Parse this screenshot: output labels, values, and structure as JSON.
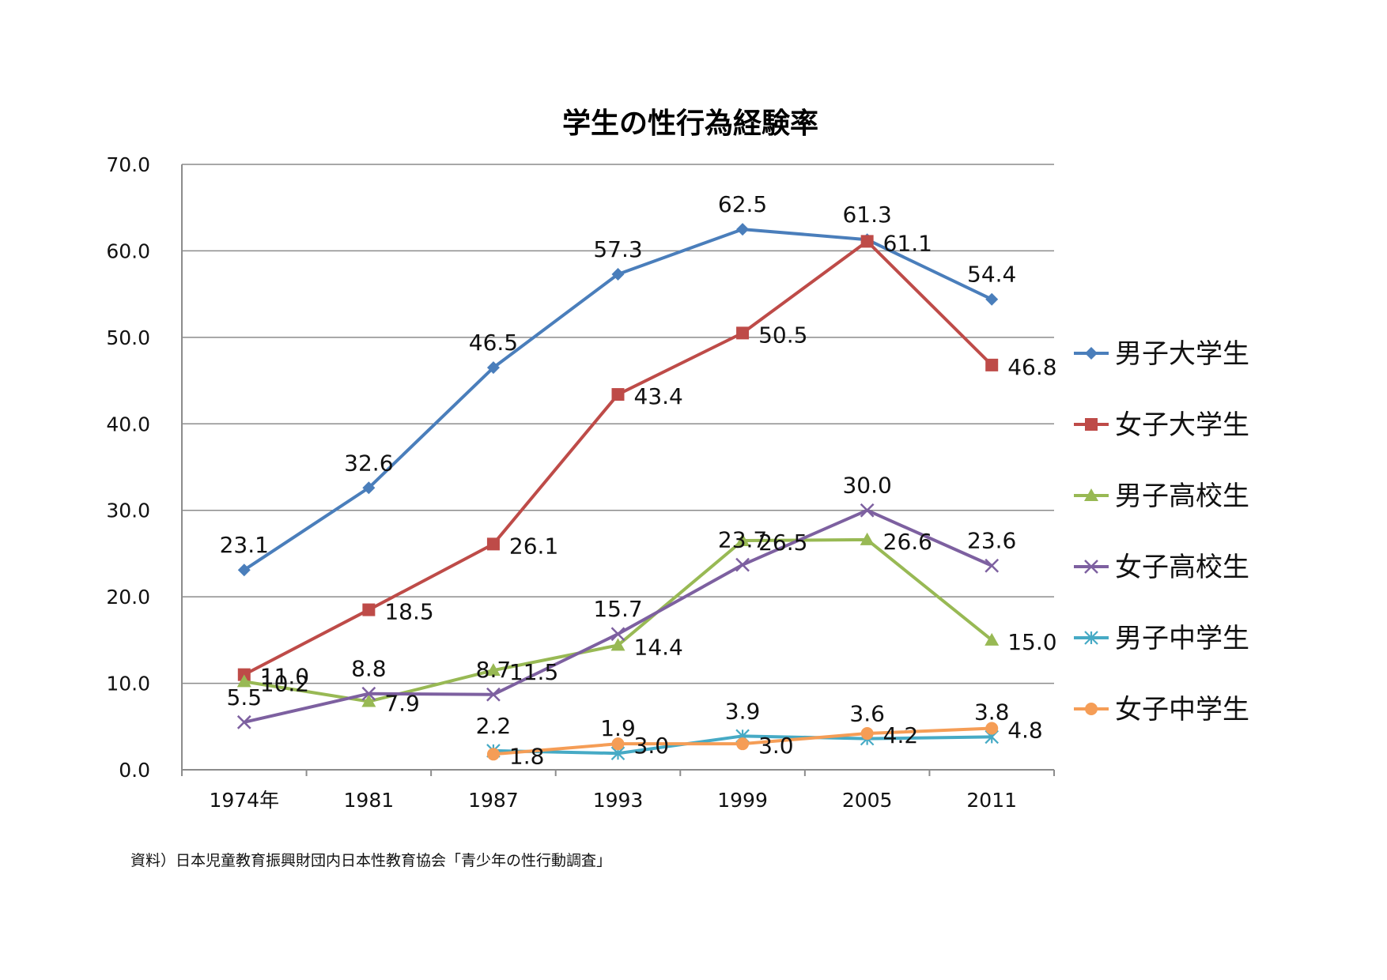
{
  "source_note": "資料）日本児童教育振興財団内日本性教育協会「青少年の性行動調査」",
  "chart_data": {
    "type": "line",
    "title": "学生の性行為経験率",
    "categories": [
      "1974年",
      "1981",
      "1987",
      "1993",
      "1999",
      "2005",
      "2011"
    ],
    "ylim": [
      0,
      70
    ],
    "yticks": [
      "0.0",
      "10.0",
      "20.0",
      "30.0",
      "40.0",
      "50.0",
      "60.0",
      "70.0"
    ],
    "grid": true,
    "legend_position": "right",
    "series": [
      {
        "name": "男子大学生",
        "color": "#4a7ebb",
        "marker": "diamond",
        "values": [
          23.1,
          32.6,
          46.5,
          57.3,
          62.5,
          61.3,
          54.4
        ],
        "labels": [
          "23.1",
          "32.6",
          "46.5",
          "57.3",
          "62.5",
          "61.3",
          "54.4"
        ]
      },
      {
        "name": "女子大学生",
        "color": "#be4b48",
        "marker": "square",
        "values": [
          11.0,
          18.5,
          26.1,
          43.4,
          50.5,
          61.1,
          46.8
        ],
        "labels": [
          "11.0",
          "18.5",
          "26.1",
          "43.4",
          "50.5",
          "61.1",
          "46.8"
        ]
      },
      {
        "name": "男子高校生",
        "color": "#98b954",
        "marker": "triangle",
        "values": [
          10.2,
          7.9,
          11.5,
          14.4,
          26.5,
          26.6,
          15.0
        ],
        "labels": [
          "10.2",
          "7.9",
          "11.5",
          "14.4",
          "26.5",
          "26.6",
          "15.0"
        ]
      },
      {
        "name": "女子高校生",
        "color": "#7d60a0",
        "marker": "x",
        "values": [
          5.5,
          8.8,
          8.7,
          15.7,
          23.7,
          30.0,
          23.6
        ],
        "labels": [
          "5.5",
          "8.8",
          "8.7",
          "15.7",
          "23.7",
          "30.0",
          "23.6"
        ]
      },
      {
        "name": "男子中学生",
        "color": "#46aac5",
        "marker": "star",
        "values": [
          null,
          null,
          2.2,
          1.9,
          3.9,
          3.6,
          3.8
        ],
        "labels": [
          null,
          null,
          "2.2",
          "1.9",
          "3.9",
          "3.6",
          "3.8"
        ]
      },
      {
        "name": "女子中学生",
        "color": "#f59d56",
        "marker": "circle",
        "values": [
          null,
          null,
          1.8,
          3.0,
          3.0,
          4.2,
          4.8
        ],
        "labels": [
          null,
          null,
          "1.8",
          "3.0",
          "3.0",
          "4.2",
          "4.8"
        ]
      }
    ]
  }
}
